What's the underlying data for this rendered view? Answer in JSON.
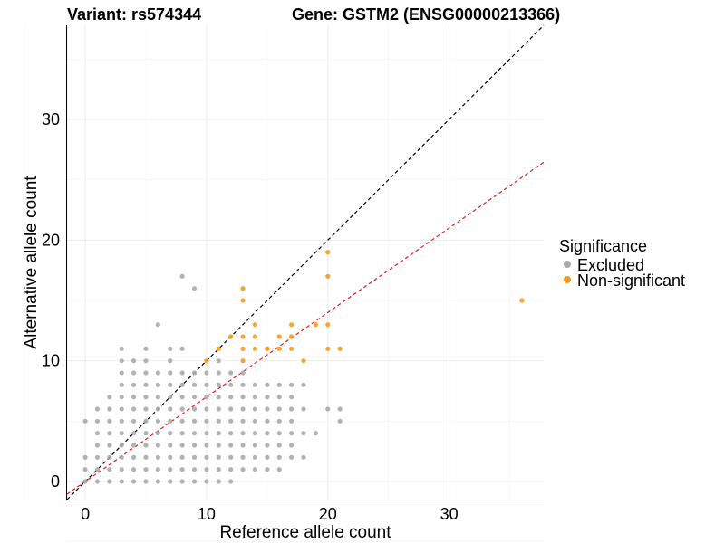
{
  "chart_data": {
    "type": "scatter",
    "title_left": "Variant: rs574344",
    "title_right": "Gene: GSTM2 (ENSG00000213366)",
    "xlabel": "Reference allele count",
    "ylabel": "Alternative allele count",
    "xlim": [
      -1.5,
      37.8
    ],
    "ylim": [
      -1.5,
      37.8
    ],
    "xticks": [
      0,
      10,
      20,
      30
    ],
    "yticks": [
      0,
      10,
      20,
      30
    ],
    "grid": true,
    "legend": {
      "title": "Significance",
      "position": "right",
      "entries": [
        {
          "label": "Excluded",
          "color": "#aaaaaa"
        },
        {
          "label": "Non-significant",
          "color": "#f59a1d"
        }
      ]
    },
    "reference_lines": [
      {
        "name": "identity",
        "slope": 1.0,
        "intercept": 0,
        "color": "#000000",
        "dash": "dashed"
      },
      {
        "name": "fit",
        "slope": 0.7,
        "intercept": 0,
        "color": "#e41a1c",
        "dash": "dashed"
      }
    ],
    "series": [
      {
        "name": "Excluded",
        "color": "#aaaaaa",
        "points": [
          [
            0,
            0
          ],
          [
            0,
            1
          ],
          [
            0,
            2
          ],
          [
            0,
            5
          ],
          [
            1,
            0
          ],
          [
            1,
            1
          ],
          [
            1,
            2
          ],
          [
            1,
            3
          ],
          [
            1,
            4
          ],
          [
            1,
            5
          ],
          [
            1,
            6
          ],
          [
            2,
            0
          ],
          [
            2,
            1
          ],
          [
            2,
            2
          ],
          [
            2,
            3
          ],
          [
            2,
            4
          ],
          [
            2,
            5
          ],
          [
            2,
            6
          ],
          [
            2,
            7
          ],
          [
            3,
            0
          ],
          [
            3,
            1
          ],
          [
            3,
            2
          ],
          [
            3,
            3
          ],
          [
            3,
            4
          ],
          [
            3,
            5
          ],
          [
            3,
            6
          ],
          [
            3,
            7
          ],
          [
            3,
            8
          ],
          [
            3,
            9
          ],
          [
            3,
            10
          ],
          [
            3,
            11
          ],
          [
            4,
            0
          ],
          [
            4,
            1
          ],
          [
            4,
            2
          ],
          [
            4,
            3
          ],
          [
            4,
            4
          ],
          [
            4,
            5
          ],
          [
            4,
            6
          ],
          [
            4,
            7
          ],
          [
            4,
            8
          ],
          [
            4,
            9
          ],
          [
            4,
            10
          ],
          [
            5,
            0
          ],
          [
            5,
            1
          ],
          [
            5,
            2
          ],
          [
            5,
            3
          ],
          [
            5,
            4
          ],
          [
            5,
            5
          ],
          [
            5,
            6
          ],
          [
            5,
            7
          ],
          [
            5,
            8
          ],
          [
            5,
            9
          ],
          [
            5,
            10
          ],
          [
            5,
            11
          ],
          [
            6,
            0
          ],
          [
            6,
            1
          ],
          [
            6,
            2
          ],
          [
            6,
            3
          ],
          [
            6,
            4
          ],
          [
            6,
            5
          ],
          [
            6,
            6
          ],
          [
            6,
            7
          ],
          [
            6,
            8
          ],
          [
            6,
            9
          ],
          [
            6,
            13
          ],
          [
            7,
            0
          ],
          [
            7,
            1
          ],
          [
            7,
            2
          ],
          [
            7,
            3
          ],
          [
            7,
            4
          ],
          [
            7,
            5
          ],
          [
            7,
            6
          ],
          [
            7,
            7
          ],
          [
            7,
            8
          ],
          [
            7,
            9
          ],
          [
            7,
            10
          ],
          [
            7,
            11
          ],
          [
            8,
            0
          ],
          [
            8,
            1
          ],
          [
            8,
            2
          ],
          [
            8,
            3
          ],
          [
            8,
            4
          ],
          [
            8,
            5
          ],
          [
            8,
            6
          ],
          [
            8,
            7
          ],
          [
            8,
            8
          ],
          [
            8,
            9
          ],
          [
            8,
            11
          ],
          [
            8,
            17
          ],
          [
            9,
            0
          ],
          [
            9,
            1
          ],
          [
            9,
            2
          ],
          [
            9,
            3
          ],
          [
            9,
            4
          ],
          [
            9,
            5
          ],
          [
            9,
            6
          ],
          [
            9,
            7
          ],
          [
            9,
            8
          ],
          [
            9,
            9
          ],
          [
            9,
            16
          ],
          [
            10,
            0
          ],
          [
            10,
            1
          ],
          [
            10,
            2
          ],
          [
            10,
            3
          ],
          [
            10,
            4
          ],
          [
            10,
            5
          ],
          [
            10,
            6
          ],
          [
            10,
            7
          ],
          [
            10,
            8
          ],
          [
            10,
            9
          ],
          [
            11,
            0
          ],
          [
            11,
            1
          ],
          [
            11,
            2
          ],
          [
            11,
            3
          ],
          [
            11,
            4
          ],
          [
            11,
            5
          ],
          [
            11,
            6
          ],
          [
            11,
            7
          ],
          [
            11,
            8
          ],
          [
            11,
            9
          ],
          [
            11,
            10
          ],
          [
            12,
            0
          ],
          [
            12,
            1
          ],
          [
            12,
            2
          ],
          [
            12,
            3
          ],
          [
            12,
            4
          ],
          [
            12,
            5
          ],
          [
            12,
            6
          ],
          [
            12,
            7
          ],
          [
            12,
            8
          ],
          [
            12,
            9
          ],
          [
            13,
            1
          ],
          [
            13,
            2
          ],
          [
            13,
            3
          ],
          [
            13,
            4
          ],
          [
            13,
            5
          ],
          [
            13,
            6
          ],
          [
            13,
            7
          ],
          [
            13,
            8
          ],
          [
            13,
            9
          ],
          [
            14,
            1
          ],
          [
            14,
            2
          ],
          [
            14,
            3
          ],
          [
            14,
            4
          ],
          [
            14,
            5
          ],
          [
            14,
            6
          ],
          [
            14,
            7
          ],
          [
            14,
            8
          ],
          [
            15,
            1
          ],
          [
            15,
            2
          ],
          [
            15,
            3
          ],
          [
            15,
            4
          ],
          [
            15,
            5
          ],
          [
            15,
            6
          ],
          [
            15,
            7
          ],
          [
            15,
            8
          ],
          [
            16,
            1
          ],
          [
            16,
            2
          ],
          [
            16,
            3
          ],
          [
            16,
            4
          ],
          [
            16,
            5
          ],
          [
            16,
            6
          ],
          [
            16,
            7
          ],
          [
            16,
            8
          ],
          [
            17,
            2
          ],
          [
            17,
            3
          ],
          [
            17,
            4
          ],
          [
            17,
            5
          ],
          [
            17,
            6
          ],
          [
            17,
            7
          ],
          [
            17,
            8
          ],
          [
            18,
            2
          ],
          [
            18,
            4
          ],
          [
            18,
            6
          ],
          [
            18,
            8
          ],
          [
            19,
            4
          ],
          [
            20,
            6
          ],
          [
            21,
            5
          ],
          [
            21,
            6
          ]
        ]
      },
      {
        "name": "Non-significant",
        "color": "#f59a1d",
        "points": [
          [
            10,
            10
          ],
          [
            11,
            11
          ],
          [
            12,
            12
          ],
          [
            13,
            10
          ],
          [
            13,
            11
          ],
          [
            13,
            12
          ],
          [
            13,
            15
          ],
          [
            13,
            16
          ],
          [
            14,
            11
          ],
          [
            14,
            12
          ],
          [
            14,
            13
          ],
          [
            15,
            11
          ],
          [
            15,
            11
          ],
          [
            16,
            11
          ],
          [
            16,
            12
          ],
          [
            17,
            11
          ],
          [
            17,
            12
          ],
          [
            17,
            13
          ],
          [
            18,
            10
          ],
          [
            19,
            13
          ],
          [
            20,
            11
          ],
          [
            20,
            13
          ],
          [
            20,
            17
          ],
          [
            20,
            19
          ],
          [
            21,
            11
          ],
          [
            36,
            15
          ]
        ]
      }
    ]
  }
}
